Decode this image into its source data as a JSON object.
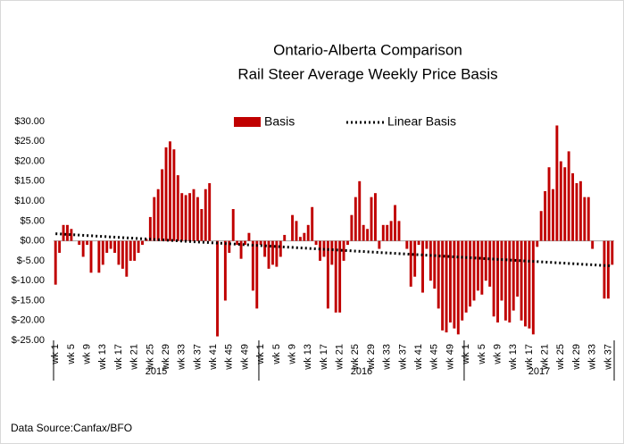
{
  "chart_data": {
    "type": "bar",
    "title": "Ontario-Alberta Comparison",
    "subtitle": "Rail Steer Average Weekly Price Basis",
    "source": "Data Source:Canfax/BFO",
    "color": "#c00000",
    "series_name": "Basis",
    "trend": {
      "name": "Linear Basis",
      "color": "#000000",
      "values": [
        1.8,
        -6.3
      ]
    },
    "ylim": [
      -25,
      30
    ],
    "yticks": [
      {
        "value": 30,
        "label": "$30.00"
      },
      {
        "value": 25,
        "label": "$25.00"
      },
      {
        "value": 20,
        "label": "$20.00"
      },
      {
        "value": 15,
        "label": "$15.00"
      },
      {
        "value": 10,
        "label": "$10.00"
      },
      {
        "value": 5,
        "label": "$5.00"
      },
      {
        "value": 0,
        "label": "$0.00"
      },
      {
        "value": -5,
        "label": "$-5.00"
      },
      {
        "value": -10,
        "label": "$-10.00"
      },
      {
        "value": -15,
        "label": "$-15.00"
      },
      {
        "value": -20,
        "label": "$-20.00"
      },
      {
        "value": -25,
        "label": "$-25.00"
      }
    ],
    "groups": [
      {
        "name": "2015",
        "categories": [
          "wk 1",
          null,
          null,
          null,
          "wk 5",
          null,
          null,
          null,
          "wk 9",
          null,
          null,
          null,
          "wk 13",
          null,
          null,
          null,
          "wk 17",
          null,
          null,
          null,
          "wk 21",
          null,
          null,
          null,
          "wk 25",
          null,
          null,
          null,
          "wk 29",
          null,
          null,
          null,
          "wk 33",
          null,
          null,
          null,
          "wk 37",
          null,
          null,
          null,
          "wk 41",
          null,
          null,
          null,
          "wk 45",
          null,
          null,
          null,
          "wk 49",
          null,
          null,
          null
        ],
        "values": [
          -11,
          -3,
          4,
          4,
          3,
          0,
          -1,
          -4,
          -1,
          -8,
          0,
          -8,
          -6,
          -3,
          -2,
          -3,
          -6,
          -7,
          -9,
          -5,
          -5,
          -3,
          -1,
          0.5,
          6,
          11,
          13,
          18,
          23.5,
          25,
          23,
          16.5,
          12,
          11.5,
          12,
          13,
          11,
          8,
          13,
          14.5,
          0,
          -24,
          0,
          -15,
          -3,
          8,
          -1,
          -4.5,
          -1,
          2,
          -12.5,
          -17
        ]
      },
      {
        "name": "2016",
        "categories": [
          "wk 1",
          null,
          null,
          null,
          "wk 5",
          null,
          null,
          null,
          "wk 9",
          null,
          null,
          null,
          "wk 13",
          null,
          null,
          null,
          "wk 17",
          null,
          null,
          null,
          "wk 21",
          null,
          null,
          null,
          "wk 25",
          null,
          null,
          null,
          "wk 29",
          null,
          null,
          null,
          "wk 33",
          null,
          null,
          null,
          "wk 37",
          null,
          null,
          null,
          "wk 41",
          null,
          null,
          null,
          "wk 45",
          null,
          null,
          null,
          "wk 49",
          null,
          null,
          null
        ],
        "values": [
          -1,
          -4,
          -7,
          -6,
          -6.5,
          -4,
          1.5,
          0,
          6.5,
          5,
          1,
          2,
          4,
          8.5,
          -1,
          -5,
          -4,
          -17,
          -6,
          -18,
          -18,
          -5,
          -1,
          6.5,
          11,
          15,
          4,
          3,
          11,
          12,
          -2,
          4,
          4,
          5,
          9,
          5,
          0,
          -2,
          -11.5,
          -9,
          -1,
          -13,
          -2,
          -10,
          -12,
          -17,
          -22.5,
          -23,
          -20.5,
          -22,
          -23.5,
          -20
        ]
      },
      {
        "name": "2017",
        "categories": [
          "wk 1",
          null,
          null,
          null,
          "wk 5",
          null,
          null,
          null,
          "wk 9",
          null,
          null,
          null,
          "wk 13",
          null,
          null,
          null,
          "wk 17",
          null,
          null,
          null,
          "wk 21",
          null,
          null,
          null,
          "wk 25",
          null,
          null,
          null,
          "wk 29",
          null,
          null,
          null,
          "wk 33",
          null,
          null,
          null,
          "wk 37",
          null
        ],
        "values": [
          -18,
          -16.5,
          -15,
          -12.5,
          -13.5,
          -10,
          -11.5,
          -19,
          -20.5,
          -15,
          -20,
          -20.5,
          -17.5,
          -14,
          -20,
          -21.5,
          -22,
          -23.5,
          -1.5,
          7.5,
          12.5,
          18.5,
          13,
          29,
          20,
          18.5,
          22.5,
          17,
          14.5,
          15,
          11,
          11,
          -2,
          0,
          0,
          -14.5,
          -14.5,
          -6
        ]
      }
    ]
  }
}
